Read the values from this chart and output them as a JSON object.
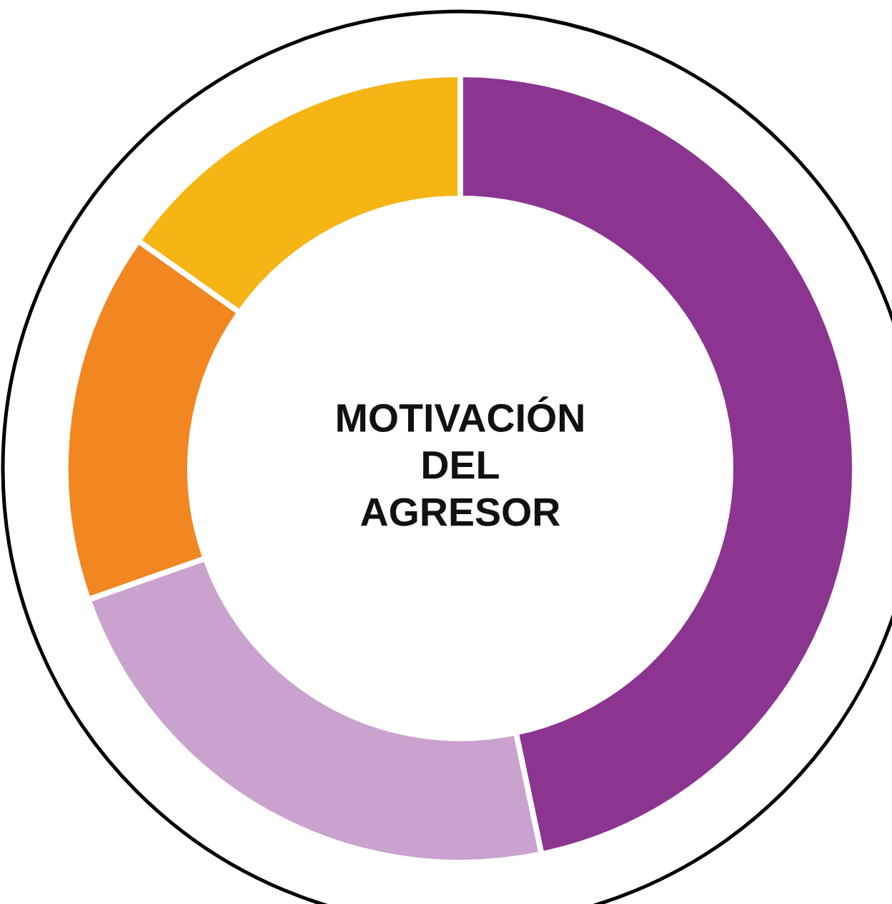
{
  "chart_data": {
    "type": "donut",
    "title": "MOTIVACIÓN\nDEL\nAGRESOR",
    "categories": [
      null,
      null,
      null,
      null
    ],
    "values": [
      46.7,
      22.9,
      15.2,
      15.2
    ],
    "colors": [
      "#8b3591",
      "#c9a3cd",
      "#f28621",
      "#f4b515"
    ]
  }
}
